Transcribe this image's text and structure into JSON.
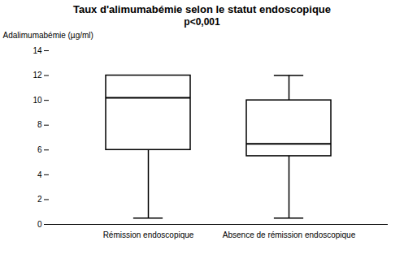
{
  "chart_data": {
    "type": "box",
    "title": "Taux d'alimumabémie selon le statut endoscopique",
    "subtitle": "p<0,001",
    "ylabel": "Adalimumabémie (µg/ml)",
    "categories": [
      "Rémission endoscopique",
      "Absence de rémission endoscopique"
    ],
    "whisker_low": [
      0.5,
      0.5
    ],
    "q1": [
      6.0,
      5.5
    ],
    "median": [
      10.2,
      6.5
    ],
    "q3": [
      12.0,
      10.0
    ],
    "whisker_high": [
      12.0,
      12.0
    ],
    "ylim": [
      0,
      14
    ],
    "yticks": [
      0,
      2,
      4,
      6,
      8,
      10,
      12,
      14
    ],
    "grid": false
  }
}
